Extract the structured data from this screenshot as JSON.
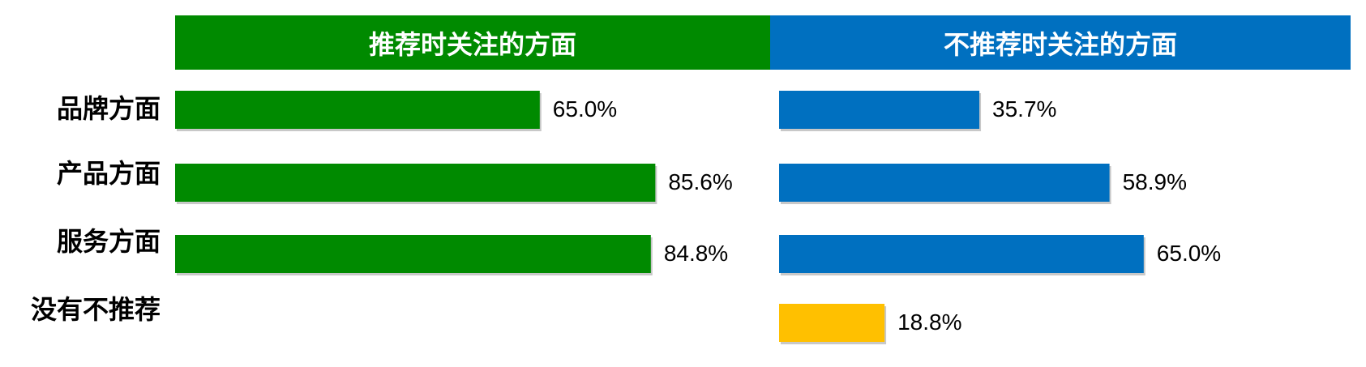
{
  "chart_data": {
    "type": "bar",
    "orientation": "horizontal",
    "categories": [
      "品牌方面",
      "产品方面",
      "服务方面",
      "没有不推荐"
    ],
    "panels": [
      {
        "header": "推荐时关注的方面",
        "color": "#008a00",
        "values": [
          65.0,
          85.6,
          84.8,
          null
        ],
        "labels": [
          "65.0%",
          "85.6%",
          "84.8%",
          ""
        ]
      },
      {
        "header": "不推荐时关注的方面",
        "color": "#0070c0",
        "highlight_color": "#ffc000",
        "values": [
          35.7,
          58.9,
          65.0,
          18.8
        ],
        "labels": [
          "35.7%",
          "58.9%",
          "65.0%",
          "18.8%"
        ]
      }
    ],
    "unit": "%",
    "xlim": [
      0,
      100
    ],
    "grid": false,
    "legend": "none"
  }
}
